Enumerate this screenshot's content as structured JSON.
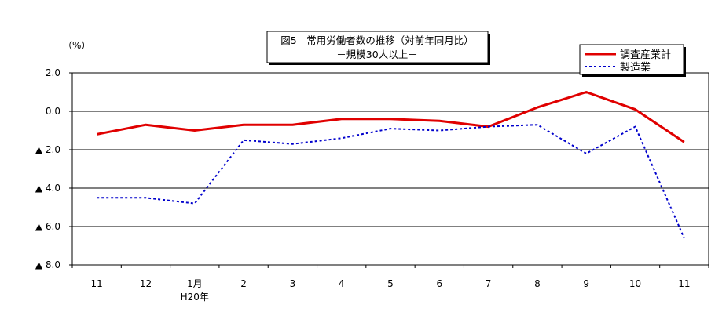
{
  "chart_data": {
    "type": "line",
    "title": "図5　常用労働者数の推移（対前年同月比）",
    "subtitle": "－規模30人以上－",
    "ylabel": "（%）",
    "categories": [
      "11",
      "12",
      "1月",
      "2",
      "3",
      "4",
      "5",
      "6",
      "7",
      "8",
      "9",
      "10",
      "11"
    ],
    "category_sublabels": {
      "2": "H20年"
    },
    "ylim": [
      -8.0,
      2.0
    ],
    "yticks": [
      2.0,
      0.0,
      -2.0,
      -4.0,
      -6.0,
      -8.0
    ],
    "ytick_labels": [
      "2.0",
      "0.0",
      "▲ 2.0",
      "▲ 4.0",
      "▲ 6.0",
      "▲ 8.0"
    ],
    "grid": true,
    "legend_position": "top-right",
    "series": [
      {
        "name": "調査産業計",
        "color": "#e00000",
        "style": "solid",
        "values": [
          -1.2,
          -0.7,
          -1.0,
          -0.7,
          -0.7,
          -0.4,
          -0.4,
          -0.5,
          -0.8,
          0.2,
          1.0,
          0.1,
          -1.6
        ]
      },
      {
        "name": "製造業",
        "color": "#0000cc",
        "style": "dotted",
        "values": [
          -4.5,
          -4.5,
          -4.8,
          -1.5,
          -1.7,
          -1.4,
          -0.9,
          -1.0,
          -0.8,
          -0.7,
          -2.2,
          -0.8,
          -6.6
        ]
      }
    ]
  }
}
